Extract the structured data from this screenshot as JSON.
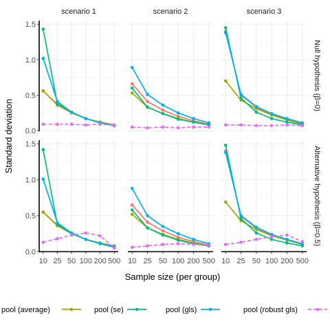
{
  "chart_data": {
    "type": "line",
    "xlabel": "Sample size (per group)",
    "ylabel": "Standard deviation",
    "x": [
      10,
      25,
      50,
      100,
      200,
      500
    ],
    "x_tick_labels": [
      "10",
      "25",
      "50",
      "100",
      "200",
      "500"
    ],
    "ylim": [
      0,
      1.55
    ],
    "y_ticks": [
      0.0,
      0.5,
      1.0,
      1.5
    ],
    "y_tick_labels": [
      "0.0",
      "0.5",
      "1.0",
      "1.5"
    ],
    "grid": true,
    "legend_position": "bottom",
    "columns": [
      "scenario 1",
      "scenario 2",
      "scenario 3"
    ],
    "rows": [
      "Null hypothesis (β=0)",
      "Alternative hypothesis (β=0.5)"
    ],
    "series": [
      {
        "name": "pool (average)",
        "color": "#f8766d",
        "dashed": false
      },
      {
        "name": "pool (se)",
        "color": "#a3a500",
        "dashed": false
      },
      {
        "name": "pool (gls)",
        "color": "#00bf7d",
        "dashed": false
      },
      {
        "name": "pool (robust gls)",
        "color": "#00b0f6",
        "dashed": false
      },
      {
        "name": "",
        "color": "#e76bf3",
        "dashed": true
      }
    ],
    "panels": [
      {
        "row": 0,
        "col": 0,
        "values": [
          [
            0.56,
            0.37,
            0.26,
            0.17,
            0.12,
            0.08
          ],
          [
            0.56,
            0.36,
            0.25,
            0.17,
            0.12,
            0.08
          ],
          [
            1.43,
            0.38,
            0.26,
            0.17,
            0.11,
            0.07
          ],
          [
            1.02,
            0.41,
            0.26,
            0.17,
            0.11,
            0.07
          ],
          [
            0.09,
            0.09,
            0.09,
            0.08,
            0.09,
            0.08
          ]
        ]
      },
      {
        "row": 0,
        "col": 1,
        "values": [
          [
            0.66,
            0.41,
            0.29,
            0.2,
            0.14,
            0.09
          ],
          [
            0.53,
            0.33,
            0.24,
            0.17,
            0.12,
            0.08
          ],
          [
            0.6,
            0.33,
            0.24,
            0.16,
            0.12,
            0.08
          ],
          [
            0.89,
            0.51,
            0.36,
            0.25,
            0.17,
            0.11
          ],
          [
            0.05,
            0.04,
            0.05,
            0.04,
            0.05,
            0.05
          ]
        ]
      },
      {
        "row": 0,
        "col": 2,
        "values": [
          [
            1.4,
            0.5,
            0.33,
            0.23,
            0.16,
            0.1
          ],
          [
            0.7,
            0.43,
            0.31,
            0.22,
            0.15,
            0.09
          ],
          [
            1.45,
            0.46,
            0.26,
            0.17,
            0.12,
            0.08
          ],
          [
            1.38,
            0.51,
            0.34,
            0.24,
            0.17,
            0.11
          ],
          [
            0.08,
            0.08,
            0.07,
            0.07,
            0.08,
            0.07
          ]
        ]
      },
      {
        "row": 1,
        "col": 0,
        "values": [
          [
            0.55,
            0.37,
            0.26,
            0.17,
            0.12,
            0.08
          ],
          [
            0.55,
            0.36,
            0.25,
            0.17,
            0.12,
            0.08
          ],
          [
            1.42,
            0.38,
            0.25,
            0.17,
            0.11,
            0.06
          ],
          [
            1.01,
            0.4,
            0.26,
            0.17,
            0.11,
            0.07
          ],
          [
            0.13,
            0.18,
            0.23,
            0.26,
            0.22,
            0.05
          ]
        ]
      },
      {
        "row": 1,
        "col": 1,
        "values": [
          [
            0.65,
            0.41,
            0.29,
            0.2,
            0.14,
            0.09
          ],
          [
            0.52,
            0.33,
            0.24,
            0.17,
            0.12,
            0.08
          ],
          [
            0.58,
            0.33,
            0.23,
            0.16,
            0.11,
            0.08
          ],
          [
            0.88,
            0.5,
            0.35,
            0.25,
            0.17,
            0.11
          ],
          [
            0.06,
            0.08,
            0.1,
            0.11,
            0.1,
            0.09
          ]
        ]
      },
      {
        "row": 1,
        "col": 2,
        "values": [
          [
            1.4,
            0.49,
            0.33,
            0.23,
            0.17,
            0.1
          ],
          [
            0.69,
            0.43,
            0.31,
            0.22,
            0.16,
            0.1
          ],
          [
            1.48,
            0.46,
            0.26,
            0.17,
            0.12,
            0.08
          ],
          [
            1.38,
            0.5,
            0.34,
            0.24,
            0.17,
            0.11
          ],
          [
            0.1,
            0.13,
            0.17,
            0.21,
            0.23,
            0.14
          ]
        ]
      }
    ]
  }
}
